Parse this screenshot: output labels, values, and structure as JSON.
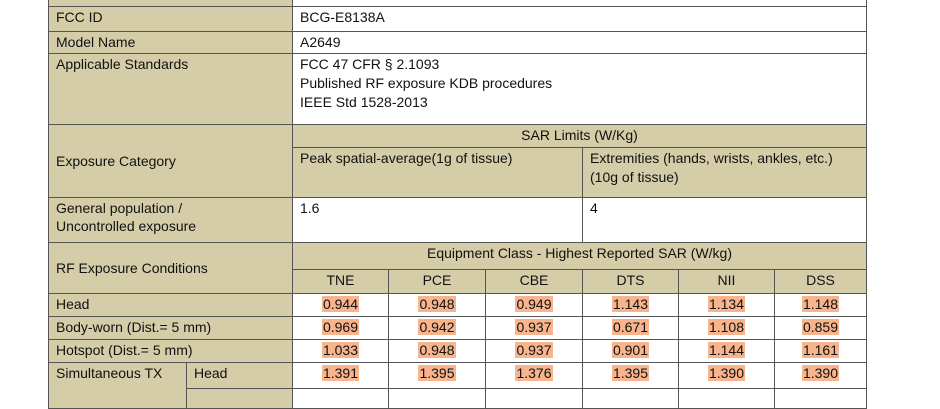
{
  "table": {
    "fcc_id": {
      "label": "FCC ID",
      "value": "BCG-E8138A"
    },
    "model_name": {
      "label": "Model Name",
      "value": "A2649"
    },
    "standards": {
      "label": "Applicable Standards",
      "lines": [
        "FCC 47 CFR § 2.1093",
        "Published RF exposure KDB procedures",
        "IEEE Std 1528-2013"
      ]
    },
    "exposure": {
      "label": "Exposure Category",
      "header": "SAR Limits (W/Kg)",
      "columns": [
        [
          "Peak spatial-average(1g of tissue)"
        ],
        [
          "Extremities (hands, wrists, ankles, etc.)",
          "(10g of tissue)"
        ]
      ]
    },
    "general": {
      "label": [
        "General population /",
        "Uncontrolled exposure"
      ],
      "values": [
        "1.6",
        "4"
      ]
    },
    "conditions": {
      "label": "RF Exposure Conditions",
      "header": "Equipment Class - Highest Reported SAR (W/kg)",
      "classes": [
        "TNE",
        "PCE",
        "CBE",
        "DTS",
        "NII",
        "DSS"
      ]
    },
    "rows": [
      {
        "label": "Head",
        "values": [
          "0.944",
          "0.948",
          "0.949",
          "1.143",
          "1.134",
          "1.148"
        ]
      },
      {
        "label": "Body-worn (Dist.= 5 mm)",
        "values": [
          "0.969",
          "0.942",
          "0.937",
          "0.671",
          "1.108",
          "0.859"
        ]
      },
      {
        "label": "Hotspot (Dist.= 5 mm)",
        "values": [
          "1.033",
          "0.948",
          "0.937",
          "0.901",
          "1.144",
          "1.161"
        ]
      }
    ],
    "simultaneous": {
      "label": "Simultaneous TX",
      "sub": "Head",
      "values": [
        "1.391",
        "1.395",
        "1.376",
        "1.395",
        "1.390",
        "1.390"
      ]
    }
  }
}
